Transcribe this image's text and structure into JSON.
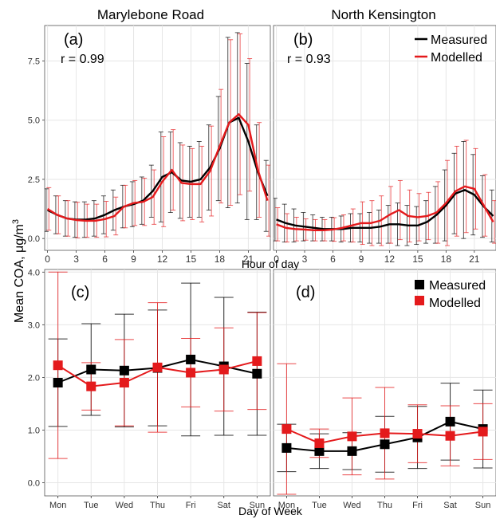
{
  "figure": {
    "ylabel_main": "Mean COA, ",
    "ylabel_unit": "μg/m",
    "ylabel_sup": "3",
    "xlabel_top": "Hour of day",
    "xlabel_bottom": "Day of Week",
    "colors": {
      "measured": "#000000",
      "modelled": "#e41a1c",
      "grid": "#e6e6e6",
      "frame": "#555555"
    }
  },
  "chart_data": [
    {
      "id": "a",
      "type": "line",
      "strip_title": "Marylebone Road",
      "panel_label": "(a)",
      "r_label": "r = 0.99",
      "xlim": [
        -0.3,
        23.3
      ],
      "ylim": [
        -0.5,
        9.0
      ],
      "x_ticks": [
        0,
        3,
        6,
        9,
        12,
        15,
        18,
        21
      ],
      "y_ticks": [
        0,
        2.5,
        5,
        7.5
      ],
      "y_tick_labels": [
        "0.0",
        "2.5",
        "5.0",
        "7.5"
      ],
      "x": [
        0,
        1,
        2,
        3,
        4,
        5,
        6,
        7,
        8,
        9,
        10,
        11,
        12,
        13,
        14,
        15,
        16,
        17,
        18,
        19,
        20,
        21,
        22,
        23
      ],
      "series": [
        {
          "name": "Measured",
          "values": [
            1.2,
            1.0,
            0.85,
            0.8,
            0.8,
            0.85,
            1.0,
            1.2,
            1.35,
            1.45,
            1.6,
            2.0,
            2.6,
            2.8,
            2.45,
            2.4,
            2.5,
            3.0,
            3.8,
            4.9,
            5.1,
            4.1,
            2.8,
            1.8
          ],
          "err": [
            0.9,
            0.8,
            0.75,
            0.75,
            0.75,
            0.75,
            0.8,
            0.85,
            0.9,
            0.95,
            1.0,
            1.1,
            1.9,
            1.7,
            1.6,
            1.5,
            1.6,
            1.8,
            2.2,
            3.6,
            3.6,
            3.3,
            2.0,
            1.5
          ]
        },
        {
          "name": "Modelled",
          "values": [
            1.25,
            1.0,
            0.85,
            0.78,
            0.75,
            0.75,
            0.82,
            0.95,
            1.35,
            1.5,
            1.55,
            1.75,
            2.4,
            2.9,
            2.35,
            2.3,
            2.3,
            2.85,
            3.9,
            4.9,
            5.25,
            4.8,
            2.9,
            1.6
          ],
          "err": [
            0.9,
            0.8,
            0.75,
            0.75,
            0.7,
            0.7,
            0.75,
            0.8,
            0.9,
            0.95,
            1.0,
            1.15,
            1.9,
            1.7,
            1.6,
            1.5,
            1.6,
            1.9,
            2.4,
            3.5,
            3.4,
            2.8,
            2.0,
            1.5
          ]
        }
      ]
    },
    {
      "id": "b",
      "type": "line",
      "strip_title": "North Kensington",
      "panel_label": "(b)",
      "r_label": "r = 0.93",
      "xlim": [
        -0.3,
        23.3
      ],
      "ylim": [
        -0.5,
        9.0
      ],
      "x_ticks": [
        0,
        3,
        6,
        9,
        12,
        15,
        18,
        21
      ],
      "y_ticks": [
        0,
        2.5,
        5,
        7.5
      ],
      "x": [
        0,
        1,
        2,
        3,
        4,
        5,
        6,
        7,
        8,
        9,
        10,
        11,
        12,
        13,
        14,
        15,
        16,
        17,
        18,
        19,
        20,
        21,
        22,
        23
      ],
      "series": [
        {
          "name": "Measured",
          "values": [
            0.8,
            0.65,
            0.55,
            0.5,
            0.45,
            0.4,
            0.4,
            0.4,
            0.45,
            0.45,
            0.45,
            0.5,
            0.6,
            0.6,
            0.55,
            0.55,
            0.7,
            1.0,
            1.4,
            1.9,
            2.05,
            1.85,
            1.35,
            0.95
          ],
          "err": [
            0.9,
            0.8,
            0.7,
            0.6,
            0.55,
            0.5,
            0.5,
            0.55,
            0.6,
            0.6,
            0.65,
            0.7,
            0.8,
            0.9,
            0.85,
            0.8,
            0.9,
            1.2,
            1.5,
            1.7,
            2.05,
            1.7,
            1.3,
            1.1
          ]
        },
        {
          "name": "Modelled",
          "values": [
            0.6,
            0.45,
            0.4,
            0.38,
            0.35,
            0.35,
            0.38,
            0.45,
            0.55,
            0.65,
            0.65,
            0.75,
            1.0,
            1.2,
            0.95,
            0.9,
            0.95,
            1.1,
            1.5,
            2.0,
            2.2,
            2.1,
            1.4,
            0.7
          ],
          "err": [
            0.7,
            0.6,
            0.5,
            0.45,
            0.45,
            0.45,
            0.5,
            0.55,
            0.7,
            0.9,
            0.95,
            1.05,
            1.2,
            1.25,
            1.1,
            1.0,
            1.0,
            1.3,
            1.8,
            1.9,
            1.95,
            1.7,
            1.3,
            0.9
          ]
        }
      ]
    },
    {
      "id": "c",
      "type": "line",
      "panel_label": "(c)",
      "categories": [
        "Mon",
        "Tue",
        "Wed",
        "Thu",
        "Fri",
        "Sat",
        "Sun"
      ],
      "ylim": [
        -0.25,
        4.05
      ],
      "y_ticks": [
        0,
        1,
        2,
        3,
        4
      ],
      "y_tick_labels": [
        "0.0",
        "1.0",
        "2.0",
        "3.0",
        "4.0"
      ],
      "series": [
        {
          "name": "Measured",
          "values": [
            1.9,
            2.15,
            2.13,
            2.18,
            2.34,
            2.21,
            2.07
          ],
          "err": [
            0.83,
            0.87,
            1.07,
            1.1,
            1.45,
            1.31,
            1.17
          ]
        },
        {
          "name": "Modelled",
          "values": [
            2.23,
            1.83,
            1.9,
            2.19,
            2.09,
            2.15,
            2.31
          ],
          "err": [
            1.77,
            0.45,
            0.82,
            1.23,
            0.65,
            0.79,
            0.92
          ]
        }
      ]
    },
    {
      "id": "d",
      "type": "line",
      "panel_label": "(d)",
      "categories": [
        "Mon",
        "Tue",
        "Wed",
        "Thu",
        "Fri",
        "Sat",
        "Sun"
      ],
      "ylim": [
        -0.25,
        4.05
      ],
      "y_ticks": [
        0,
        1,
        2,
        3,
        4
      ],
      "series": [
        {
          "name": "Measured",
          "values": [
            0.66,
            0.6,
            0.6,
            0.73,
            0.86,
            1.16,
            1.02
          ],
          "err": [
            0.45,
            0.33,
            0.35,
            0.53,
            0.59,
            0.73,
            0.74
          ]
        },
        {
          "name": "Modelled",
          "values": [
            1.02,
            0.75,
            0.88,
            0.94,
            0.93,
            0.89,
            0.97
          ],
          "err": [
            1.24,
            0.27,
            0.73,
            0.87,
            0.55,
            0.57,
            0.53
          ]
        }
      ]
    }
  ]
}
